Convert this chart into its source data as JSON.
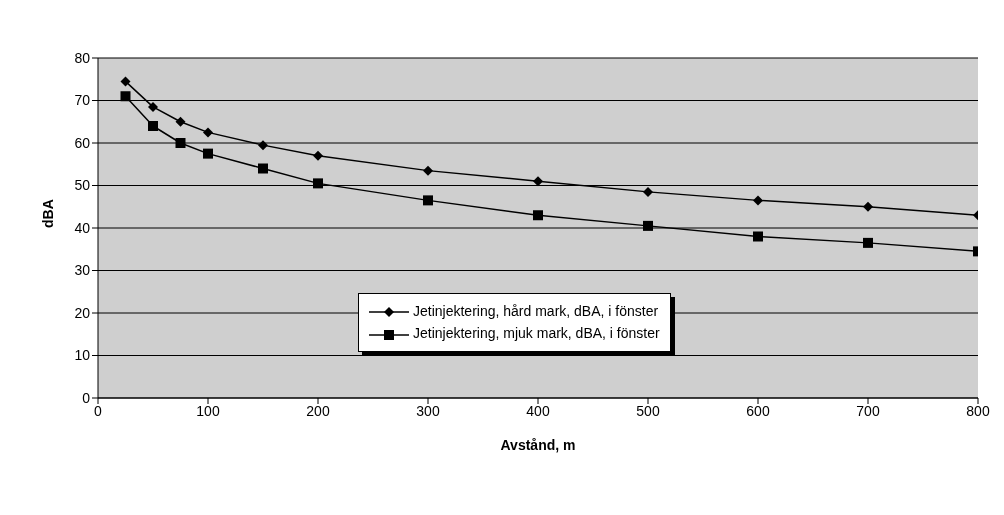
{
  "chart_data": {
    "type": "line",
    "xlabel": "Avstånd, m",
    "ylabel": "dBA",
    "x": [
      25,
      50,
      75,
      100,
      150,
      200,
      300,
      400,
      500,
      600,
      700,
      800
    ],
    "series": [
      {
        "name": "Jetinjektering, hård mark, dBA, i fönster",
        "color": "#000000",
        "marker": "diamond",
        "values": [
          74.5,
          68.5,
          65,
          62.5,
          59.5,
          57,
          53.5,
          51,
          48.5,
          46.5,
          45,
          43
        ]
      },
      {
        "name": "Jetinjektering, mjuk mark, dBA, i fönster",
        "color": "#000000",
        "marker": "square",
        "values": [
          71,
          64,
          60,
          57.5,
          54,
          50.5,
          46.5,
          43,
          40.5,
          38,
          36.5,
          34.5
        ]
      }
    ],
    "xlim": [
      0,
      800
    ],
    "xticks": [
      0,
      100,
      200,
      300,
      400,
      500,
      600,
      700,
      800
    ],
    "ylim": [
      0,
      80
    ],
    "yticks": [
      0,
      10,
      20,
      30,
      40,
      50,
      60,
      70,
      80
    ],
    "grid": "y",
    "legend": "bottom",
    "line_style": "solid"
  }
}
